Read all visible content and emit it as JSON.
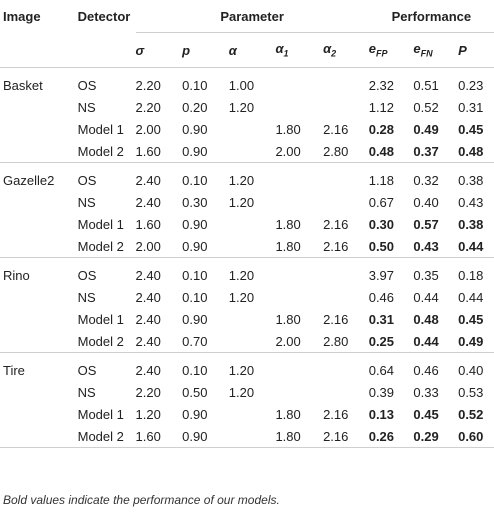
{
  "headers": {
    "image": "Image",
    "detector": "Detector",
    "parameter": "Parameter",
    "performance": "Performance",
    "sigma": "σ",
    "p": "p",
    "alpha": "α",
    "alpha1": "α",
    "alpha1_sub": "1",
    "alpha2": "α",
    "alpha2_sub": "2",
    "efp": "e",
    "efp_sub": "FP",
    "efn": "e",
    "efn_sub": "FN",
    "P": "P"
  },
  "groups": [
    {
      "image": "Basket",
      "rows": [
        {
          "detector": "OS",
          "sigma": "2.20",
          "p": "0.10",
          "alpha": "1.00",
          "alpha1": "",
          "alpha2": "",
          "efp": "2.32",
          "efn": "0.51",
          "P": "0.23",
          "bold": false
        },
        {
          "detector": "NS",
          "sigma": "2.20",
          "p": "0.20",
          "alpha": "1.20",
          "alpha1": "",
          "alpha2": "",
          "efp": "1.12",
          "efn": "0.52",
          "P": "0.31",
          "bold": false
        },
        {
          "detector": "Model 1",
          "sigma": "2.00",
          "p": "0.90",
          "alpha": "",
          "alpha1": "1.80",
          "alpha2": "2.16",
          "efp": "0.28",
          "efn": "0.49",
          "P": "0.45",
          "bold": true
        },
        {
          "detector": "Model 2",
          "sigma": "1.60",
          "p": "0.90",
          "alpha": "",
          "alpha1": "2.00",
          "alpha2": "2.80",
          "efp": "0.48",
          "efn": "0.37",
          "P": "0.48",
          "bold": true
        }
      ]
    },
    {
      "image": "Gazelle2",
      "rows": [
        {
          "detector": "OS",
          "sigma": "2.40",
          "p": "0.10",
          "alpha": "1.20",
          "alpha1": "",
          "alpha2": "",
          "efp": "1.18",
          "efn": "0.32",
          "P": "0.38",
          "bold": false
        },
        {
          "detector": "NS",
          "sigma": "2.40",
          "p": "0.30",
          "alpha": "1.20",
          "alpha1": "",
          "alpha2": "",
          "efp": "0.67",
          "efn": "0.40",
          "P": "0.43",
          "bold": false
        },
        {
          "detector": "Model 1",
          "sigma": "1.60",
          "p": "0.90",
          "alpha": "",
          "alpha1": "1.80",
          "alpha2": "2.16",
          "efp": "0.30",
          "efn": "0.57",
          "P": "0.38",
          "bold": true
        },
        {
          "detector": "Model 2",
          "sigma": "2.00",
          "p": "0.90",
          "alpha": "",
          "alpha1": "1.80",
          "alpha2": "2.16",
          "efp": "0.50",
          "efn": "0.43",
          "P": "0.44",
          "bold": true
        }
      ]
    },
    {
      "image": "Rino",
      "rows": [
        {
          "detector": "OS",
          "sigma": "2.40",
          "p": "0.10",
          "alpha": "1.20",
          "alpha1": "",
          "alpha2": "",
          "efp": "3.97",
          "efn": "0.35",
          "P": "0.18",
          "bold": false
        },
        {
          "detector": "NS",
          "sigma": "2.40",
          "p": "0.10",
          "alpha": "1.20",
          "alpha1": "",
          "alpha2": "",
          "efp": "0.46",
          "efn": "0.44",
          "P": "0.44",
          "bold": false
        },
        {
          "detector": "Model 1",
          "sigma": "2.40",
          "p": "0.90",
          "alpha": "",
          "alpha1": "1.80",
          "alpha2": "2.16",
          "efp": "0.31",
          "efn": "0.48",
          "P": "0.45",
          "bold": true
        },
        {
          "detector": "Model 2",
          "sigma": "2.40",
          "p": "0.70",
          "alpha": "",
          "alpha1": "2.00",
          "alpha2": "2.80",
          "efp": "0.25",
          "efn": "0.44",
          "P": "0.49",
          "bold": true
        }
      ]
    },
    {
      "image": "Tire",
      "rows": [
        {
          "detector": "OS",
          "sigma": "2.40",
          "p": "0.10",
          "alpha": "1.20",
          "alpha1": "",
          "alpha2": "",
          "efp": "0.64",
          "efn": "0.46",
          "P": "0.40",
          "bold": false
        },
        {
          "detector": "NS",
          "sigma": "2.20",
          "p": "0.50",
          "alpha": "1.20",
          "alpha1": "",
          "alpha2": "",
          "efp": "0.39",
          "efn": "0.33",
          "P": "0.53",
          "bold": false
        },
        {
          "detector": "Model 1",
          "sigma": "1.20",
          "p": "0.90",
          "alpha": "",
          "alpha1": "1.80",
          "alpha2": "2.16",
          "efp": "0.13",
          "efn": "0.45",
          "P": "0.52",
          "bold": true
        },
        {
          "detector": "Model 2",
          "sigma": "1.60",
          "p": "0.90",
          "alpha": "",
          "alpha1": "1.80",
          "alpha2": "2.16",
          "efp": "0.26",
          "efn": "0.29",
          "P": "0.60",
          "bold": true
        }
      ]
    }
  ],
  "footnote": "Bold values indicate the performance of our models."
}
